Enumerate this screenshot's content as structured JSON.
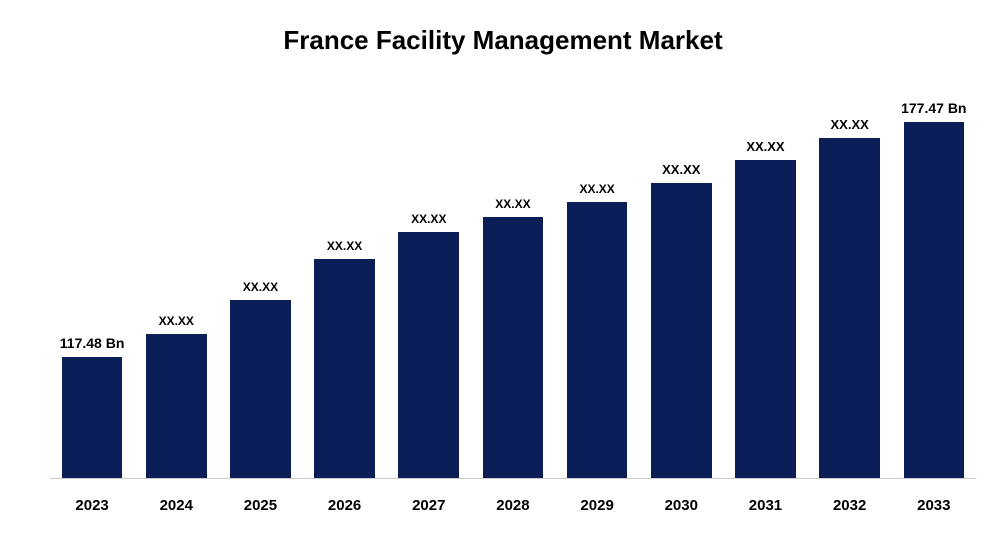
{
  "chart": {
    "type": "bar",
    "title": "France Facility Management Market",
    "title_fontsize": 26,
    "title_color": "#000000",
    "background_color": "#ffffff",
    "bar_color": "#0b1e58",
    "axis_line_color": "#cccccc",
    "categories": [
      "2023",
      "2024",
      "2025",
      "2026",
      "2027",
      "2028",
      "2029",
      "2030",
      "2031",
      "2032",
      "2033"
    ],
    "values_display": [
      "117.48 Bn",
      "XX.XX",
      "XX.XX",
      "XX.XX",
      "XX.XX",
      "XX.XX",
      "XX.XX",
      "XX.XX",
      "XX.XX",
      "XX.XX",
      "177.47 Bn"
    ],
    "bar_heights_pct": [
      32,
      38,
      47,
      58,
      65,
      69,
      73,
      78,
      84,
      90,
      96
    ],
    "label_sizes": [
      "normal",
      "small",
      "small",
      "small",
      "small",
      "small",
      "small",
      "medium",
      "medium",
      "medium",
      "normal"
    ],
    "x_label_fontsize": 15,
    "x_label_fontweight": "bold",
    "value_label_fontweight": "bold",
    "bar_width_pct": 72,
    "ylim": [
      0,
      185
    ]
  }
}
